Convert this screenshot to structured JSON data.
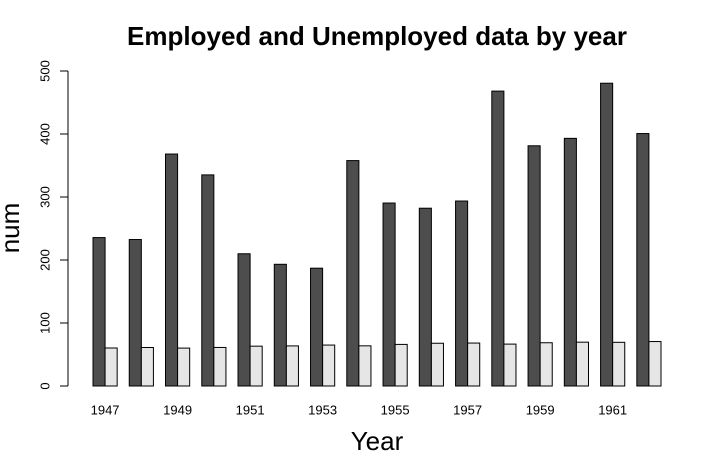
{
  "chart_data": {
    "type": "bar",
    "title": "Employed and Unemployed data by year",
    "x_label": "Year",
    "y_label": "num",
    "categories": [
      "1947",
      null,
      "1949",
      null,
      "1951",
      null,
      "1953",
      null,
      "1955",
      null,
      "1957",
      null,
      "1959",
      null,
      "1961",
      null
    ],
    "series": [
      {
        "color": "#4d4d4d",
        "values": [
          235.6,
          232.5,
          368.2,
          335.1,
          209.9,
          193.2,
          187.0,
          357.8,
          290.4,
          282.2,
          293.6,
          468.1,
          381.3,
          393.1,
          480.6,
          400.7
        ]
      },
      {
        "color": "#e6e6e6",
        "values": [
          60.323,
          61.122,
          60.171,
          61.187,
          63.221,
          63.639,
          64.989,
          63.761,
          66.019,
          67.857,
          68.169,
          66.513,
          68.655,
          69.564,
          69.331,
          70.551
        ]
      }
    ],
    "ylim": [
      0,
      500
    ],
    "yticks": [
      0,
      100,
      200,
      300,
      400,
      500
    ]
  }
}
